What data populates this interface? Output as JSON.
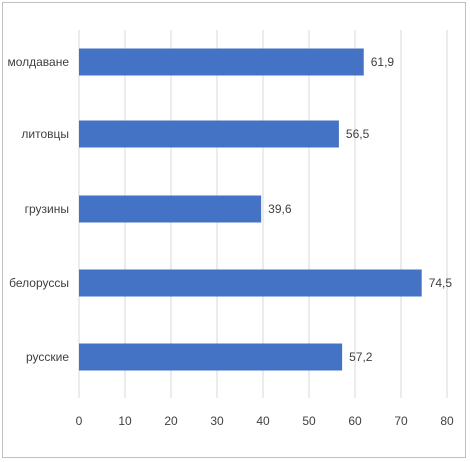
{
  "chart_data": {
    "type": "bar",
    "orientation": "horizontal",
    "categories": [
      "молдаване",
      "литовцы",
      "грузины",
      "белоруссы",
      "русские"
    ],
    "values": [
      61.9,
      56.5,
      39.6,
      74.5,
      57.2
    ],
    "value_labels": [
      "61,9",
      "56,5",
      "39,6",
      "74,5",
      "57,2"
    ],
    "x_ticks": [
      "0",
      "10",
      "20",
      "30",
      "40",
      "50",
      "60",
      "70",
      "80"
    ],
    "xlim": [
      0,
      80
    ],
    "title": "",
    "xlabel": "",
    "ylabel": "",
    "grid": "vertical",
    "legend": "none",
    "bar_color": "#4472c4",
    "grid_color": "#d9d9d9"
  }
}
